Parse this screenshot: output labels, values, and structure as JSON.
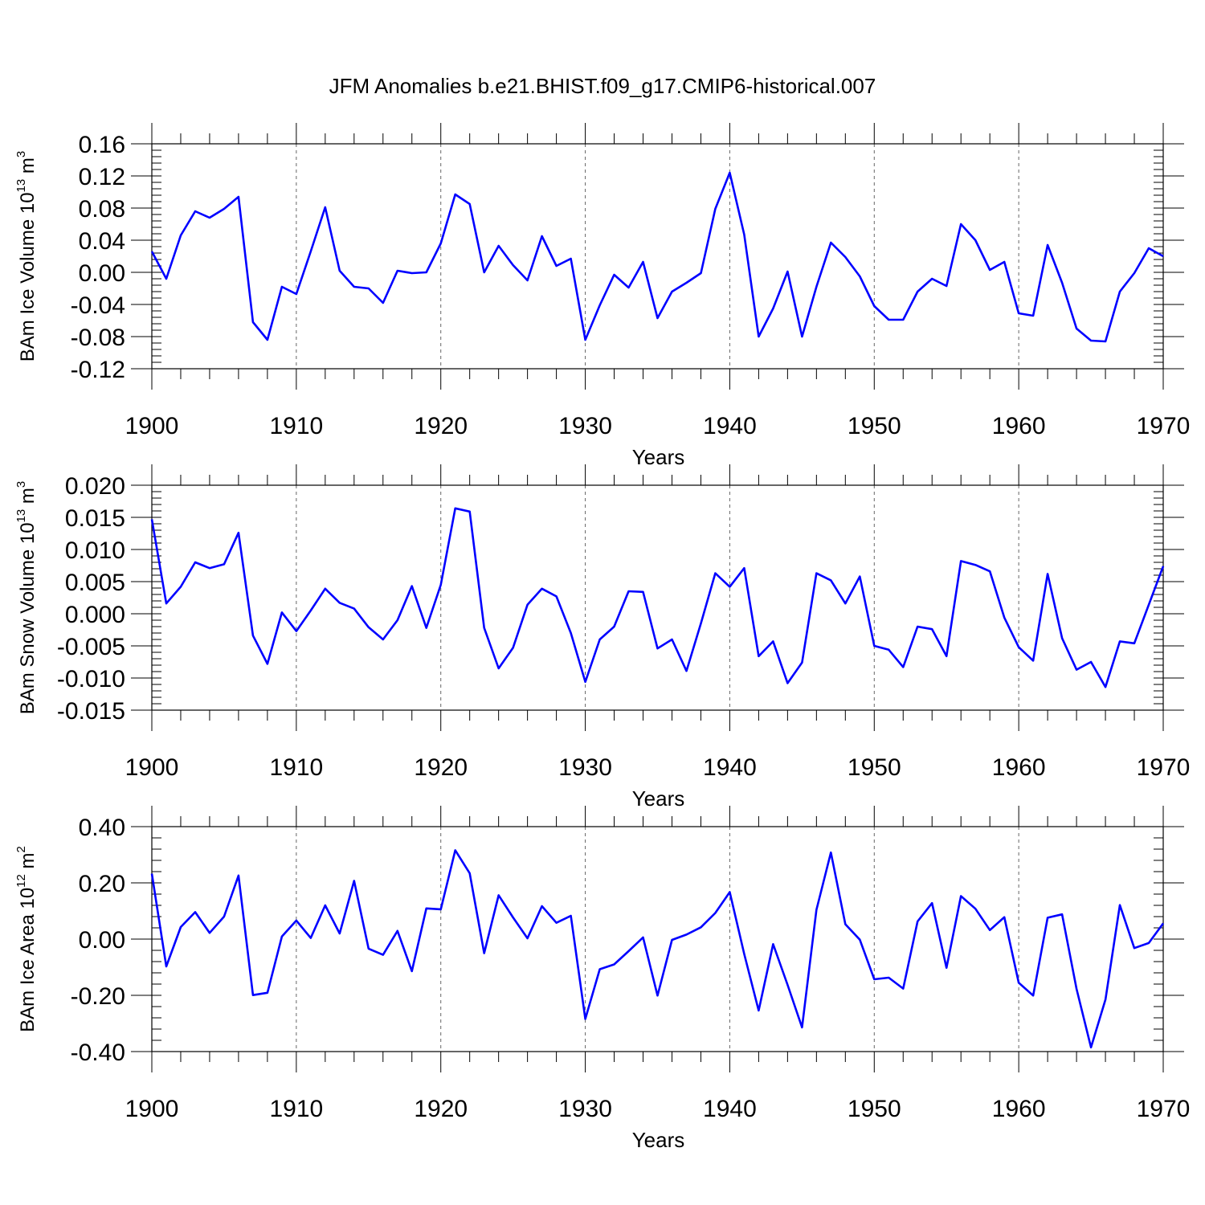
{
  "title": "JFM Anomalies b.e21.BHIST.f09_g17.CMIP6-historical.007",
  "line_color": "#0000ff",
  "chart_data": [
    {
      "type": "line",
      "ylabel": "BAm Ice Volume 10",
      "ylabel_exp": "13",
      "ylabel_unit": "m",
      "ylabel_unit_exp": "3",
      "xlabel": "Years",
      "xlim": [
        1900,
        1970
      ],
      "ylim": [
        -0.12,
        0.16
      ],
      "x_ticks": [
        "1900",
        "1910",
        "1920",
        "1930",
        "1940",
        "1950",
        "1960",
        "1970"
      ],
      "y_ticks": [
        "0.16",
        "0.12",
        "0.08",
        "0.04",
        "0.00",
        "-0.04",
        "-0.08",
        "-0.12"
      ],
      "y_tick_values": [
        0.16,
        0.12,
        0.08,
        0.04,
        0.0,
        -0.04,
        -0.08,
        -0.12
      ],
      "y_minor_step": 0.008,
      "grid": "vertical dashed",
      "x": [
        1900,
        1901,
        1902,
        1903,
        1904,
        1905,
        1906,
        1907,
        1908,
        1909,
        1910,
        1911,
        1912,
        1913,
        1914,
        1915,
        1916,
        1917,
        1918,
        1919,
        1920,
        1921,
        1922,
        1923,
        1924,
        1925,
        1926,
        1927,
        1928,
        1929,
        1930,
        1931,
        1932,
        1933,
        1934,
        1935,
        1936,
        1937,
        1938,
        1939,
        1940,
        1941,
        1942,
        1943,
        1944,
        1945,
        1946,
        1947,
        1948,
        1949,
        1950,
        1951,
        1952,
        1953,
        1954,
        1955,
        1956,
        1957,
        1958,
        1959,
        1960,
        1961,
        1962,
        1963,
        1964,
        1965,
        1966,
        1967,
        1968,
        1969,
        1970
      ],
      "values": [
        0.026,
        -0.008,
        0.046,
        0.076,
        0.068,
        0.079,
        0.094,
        -0.062,
        -0.084,
        -0.018,
        -0.027,
        0.026,
        0.081,
        0.002,
        -0.018,
        -0.02,
        -0.038,
        0.002,
        -0.001,
        0.0,
        0.036,
        0.097,
        0.085,
        0.0,
        0.033,
        0.009,
        -0.01,
        0.045,
        0.008,
        0.017,
        -0.084,
        -0.041,
        -0.003,
        -0.019,
        0.013,
        -0.057,
        -0.024,
        -0.013,
        -0.001,
        0.079,
        0.124,
        0.047,
        -0.08,
        -0.045,
        0.001,
        -0.08,
        -0.018,
        0.037,
        0.019,
        -0.005,
        -0.042,
        -0.059,
        -0.059,
        -0.024,
        -0.008,
        -0.017,
        0.06,
        0.04,
        0.003,
        0.013,
        -0.051,
        -0.054,
        0.034,
        -0.013,
        -0.07,
        -0.085,
        -0.086,
        -0.024,
        -0.001,
        0.03,
        0.02
      ]
    },
    {
      "type": "line",
      "ylabel": "BAm Snow Volume 10",
      "ylabel_exp": "13",
      "ylabel_unit": "m",
      "ylabel_unit_exp": "3",
      "xlabel": "Years",
      "xlim": [
        1900,
        1970
      ],
      "ylim": [
        -0.015,
        0.02
      ],
      "x_ticks": [
        "1900",
        "1910",
        "1920",
        "1930",
        "1940",
        "1950",
        "1960",
        "1970"
      ],
      "y_ticks": [
        "0.020",
        "0.015",
        "0.010",
        "0.005",
        "0.000",
        "-0.005",
        "-0.010",
        "-0.015"
      ],
      "y_tick_values": [
        0.02,
        0.015,
        0.01,
        0.005,
        0.0,
        -0.005,
        -0.01,
        -0.015
      ],
      "y_minor_step": 0.001,
      "grid": "vertical dashed",
      "x": [
        1900,
        1901,
        1902,
        1903,
        1904,
        1905,
        1906,
        1907,
        1908,
        1909,
        1910,
        1911,
        1912,
        1913,
        1914,
        1915,
        1916,
        1917,
        1918,
        1919,
        1920,
        1921,
        1922,
        1923,
        1924,
        1925,
        1926,
        1927,
        1928,
        1929,
        1930,
        1931,
        1932,
        1933,
        1934,
        1935,
        1936,
        1937,
        1938,
        1939,
        1940,
        1941,
        1942,
        1943,
        1944,
        1945,
        1946,
        1947,
        1948,
        1949,
        1950,
        1951,
        1952,
        1953,
        1954,
        1955,
        1956,
        1957,
        1958,
        1959,
        1960,
        1961,
        1962,
        1963,
        1964,
        1965,
        1966,
        1967,
        1968,
        1969,
        1970
      ],
      "values": [
        0.0147,
        0.0016,
        0.0042,
        0.008,
        0.0071,
        0.0077,
        0.0126,
        -0.0034,
        -0.0078,
        0.0002,
        -0.0027,
        0.0005,
        0.0039,
        0.0017,
        0.0008,
        -0.0021,
        -0.004,
        -0.001,
        0.0043,
        -0.0022,
        0.0045,
        0.0164,
        0.0159,
        -0.0022,
        -0.0085,
        -0.0053,
        0.0014,
        0.0039,
        0.0027,
        -0.003,
        -0.0106,
        -0.004,
        -0.002,
        0.0035,
        0.0034,
        -0.0054,
        -0.004,
        -0.0089,
        -0.0015,
        0.0063,
        0.0042,
        0.0071,
        -0.0066,
        -0.0043,
        -0.0108,
        -0.0076,
        0.0063,
        0.0052,
        0.0016,
        0.0058,
        -0.005,
        -0.0056,
        -0.0083,
        -0.002,
        -0.0024,
        -0.0066,
        0.0082,
        0.0076,
        0.0066,
        -0.0006,
        -0.0052,
        -0.0073,
        0.0062,
        -0.0038,
        -0.0087,
        -0.0075,
        -0.0114,
        -0.0043,
        -0.0046,
        0.0014,
        0.0074
      ]
    },
    {
      "type": "line",
      "ylabel": "BAm Ice Area 10",
      "ylabel_exp": "12",
      "ylabel_unit": "m",
      "ylabel_unit_exp": "2",
      "xlabel": "Years",
      "xlim": [
        1900,
        1970
      ],
      "ylim": [
        -0.4,
        0.4
      ],
      "x_ticks": [
        "1900",
        "1910",
        "1920",
        "1930",
        "1940",
        "1950",
        "1960",
        "1970"
      ],
      "y_ticks": [
        "0.40",
        "0.20",
        "0.00",
        "-0.20",
        "-0.40"
      ],
      "y_tick_values": [
        0.4,
        0.2,
        0.0,
        -0.2,
        -0.4
      ],
      "y_minor_step": 0.04,
      "grid": "vertical dashed",
      "x": [
        1900,
        1901,
        1902,
        1903,
        1904,
        1905,
        1906,
        1907,
        1908,
        1909,
        1910,
        1911,
        1912,
        1913,
        1914,
        1915,
        1916,
        1917,
        1918,
        1919,
        1920,
        1921,
        1922,
        1923,
        1924,
        1925,
        1926,
        1927,
        1928,
        1929,
        1930,
        1931,
        1932,
        1933,
        1934,
        1935,
        1936,
        1937,
        1938,
        1939,
        1940,
        1941,
        1942,
        1943,
        1944,
        1945,
        1946,
        1947,
        1948,
        1949,
        1950,
        1951,
        1952,
        1953,
        1954,
        1955,
        1956,
        1957,
        1958,
        1959,
        1960,
        1961,
        1962,
        1963,
        1964,
        1965,
        1966,
        1967,
        1968,
        1969,
        1970
      ],
      "values": [
        0.233,
        -0.097,
        0.043,
        0.096,
        0.022,
        0.08,
        0.226,
        -0.199,
        -0.191,
        0.009,
        0.066,
        0.004,
        0.12,
        0.02,
        0.207,
        -0.034,
        -0.056,
        0.029,
        -0.114,
        0.109,
        0.106,
        0.316,
        0.234,
        -0.05,
        0.156,
        0.077,
        0.003,
        0.117,
        0.058,
        0.083,
        -0.284,
        -0.107,
        -0.09,
        -0.043,
        0.006,
        -0.201,
        -0.003,
        0.016,
        0.042,
        0.093,
        0.167,
        -0.053,
        -0.254,
        -0.018,
        -0.163,
        -0.314,
        0.104,
        0.308,
        0.053,
        -0.002,
        -0.143,
        -0.137,
        -0.176,
        0.063,
        0.128,
        -0.102,
        0.153,
        0.108,
        0.032,
        0.078,
        -0.155,
        -0.201,
        0.076,
        0.088,
        -0.177,
        -0.385,
        -0.215,
        0.121,
        -0.032,
        -0.014,
        0.056
      ]
    }
  ]
}
